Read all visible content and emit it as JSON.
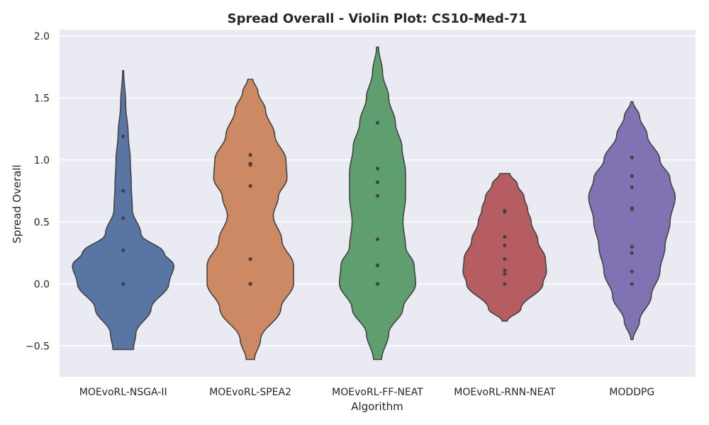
{
  "chart_data": {
    "type": "violin",
    "title": "Spread Overall - Violin Plot: CS10-Med-71",
    "xlabel": "Algorithm",
    "ylabel": "Spread Overall",
    "ylim": [
      -0.75,
      2.05
    ],
    "yticks": [
      -0.5,
      0.0,
      0.5,
      1.0,
      1.5,
      2.0
    ],
    "ytick_labels": [
      "−0.5",
      "0.0",
      "0.5",
      "1.0",
      "1.5",
      "2.0"
    ],
    "grid": true,
    "categories": [
      "MOEvoRL-NSGA-II",
      "MOEvoRL-SPEA2",
      "MOEvoRL-FF-NEAT",
      "MOEvoRL-RNN-NEAT",
      "MODDPG"
    ],
    "series": [
      {
        "color": "#5975a4",
        "range": [
          -0.53,
          1.72
        ],
        "points": [
          1.19,
          0.75,
          0.53,
          0.27,
          0.0,
          0.0
        ],
        "density": [
          [
            -0.53,
            0.2
          ],
          [
            -0.4,
            0.25
          ],
          [
            -0.2,
            0.55
          ],
          [
            0.0,
            0.9
          ],
          [
            0.15,
            1.0
          ],
          [
            0.25,
            0.8
          ],
          [
            0.4,
            0.35
          ],
          [
            0.6,
            0.18
          ],
          [
            0.8,
            0.16
          ],
          [
            1.0,
            0.14
          ],
          [
            1.2,
            0.1
          ],
          [
            1.45,
            0.05
          ],
          [
            1.72,
            0.01
          ]
        ]
      },
      {
        "color": "#cc8963",
        "range": [
          -0.61,
          1.65
        ],
        "points": [
          1.04,
          0.97,
          0.96,
          0.79,
          0.2,
          0.0,
          0.0
        ],
        "density": [
          [
            -0.61,
            0.08
          ],
          [
            -0.45,
            0.2
          ],
          [
            -0.2,
            0.6
          ],
          [
            0.0,
            0.85
          ],
          [
            0.15,
            0.85
          ],
          [
            0.35,
            0.62
          ],
          [
            0.55,
            0.45
          ],
          [
            0.7,
            0.55
          ],
          [
            0.85,
            0.72
          ],
          [
            1.0,
            0.7
          ],
          [
            1.2,
            0.48
          ],
          [
            1.4,
            0.3
          ],
          [
            1.55,
            0.15
          ],
          [
            1.65,
            0.05
          ]
        ]
      },
      {
        "color": "#5f9e6e",
        "range": [
          -0.61,
          1.91
        ],
        "points": [
          1.3,
          0.93,
          0.82,
          0.71,
          0.36,
          0.15,
          0.0,
          0.0
        ],
        "density": [
          [
            -0.61,
            0.08
          ],
          [
            -0.4,
            0.22
          ],
          [
            -0.2,
            0.5
          ],
          [
            0.0,
            0.75
          ],
          [
            0.15,
            0.72
          ],
          [
            0.3,
            0.55
          ],
          [
            0.5,
            0.5
          ],
          [
            0.7,
            0.55
          ],
          [
            0.9,
            0.55
          ],
          [
            1.1,
            0.48
          ],
          [
            1.3,
            0.35
          ],
          [
            1.5,
            0.22
          ],
          [
            1.7,
            0.1
          ],
          [
            1.91,
            0.02
          ]
        ]
      },
      {
        "color": "#b55d60",
        "range": [
          -0.3,
          0.89
        ],
        "points": [
          0.59,
          0.58,
          0.38,
          0.31,
          0.2,
          0.11,
          0.08,
          0.0
        ],
        "density": [
          [
            -0.3,
            0.05
          ],
          [
            -0.2,
            0.32
          ],
          [
            0.0,
            0.75
          ],
          [
            0.1,
            0.82
          ],
          [
            0.2,
            0.8
          ],
          [
            0.35,
            0.65
          ],
          [
            0.5,
            0.52
          ],
          [
            0.6,
            0.45
          ],
          [
            0.7,
            0.38
          ],
          [
            0.8,
            0.25
          ],
          [
            0.89,
            0.1
          ]
        ]
      },
      {
        "color": "#8172b3",
        "range": [
          -0.45,
          1.47
        ],
        "points": [
          1.02,
          0.87,
          0.78,
          0.61,
          0.6,
          0.3,
          0.25,
          0.1,
          0.0
        ],
        "density": [
          [
            -0.45,
            0.02
          ],
          [
            -0.3,
            0.15
          ],
          [
            -0.1,
            0.38
          ],
          [
            0.1,
            0.55
          ],
          [
            0.3,
            0.65
          ],
          [
            0.5,
            0.75
          ],
          [
            0.7,
            0.85
          ],
          [
            0.85,
            0.75
          ],
          [
            1.0,
            0.55
          ],
          [
            1.2,
            0.3
          ],
          [
            1.35,
            0.15
          ],
          [
            1.47,
            0.02
          ]
        ]
      }
    ]
  }
}
